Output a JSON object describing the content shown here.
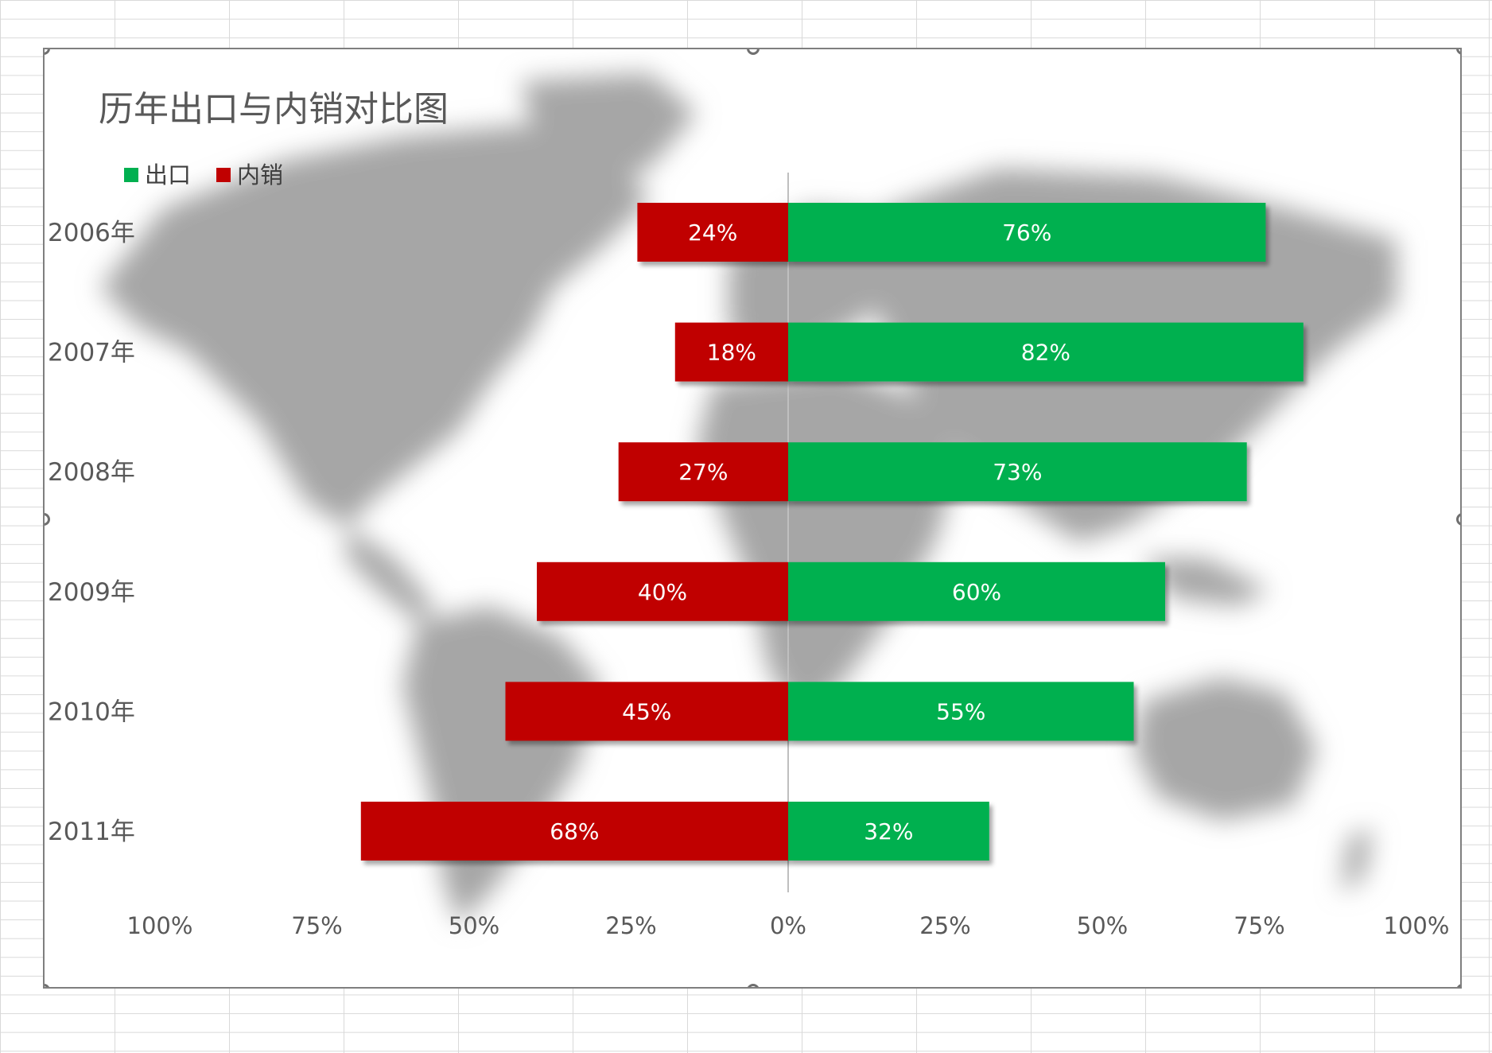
{
  "chart_data": {
    "type": "bar",
    "title": "历年出口与内销对比图",
    "categories": [
      "2006年",
      "2007年",
      "2008年",
      "2009年",
      "2010年",
      "2011年"
    ],
    "series": [
      {
        "name": "出口",
        "color": "#00b050",
        "values": [
          0.76,
          0.82,
          0.73,
          0.6,
          0.55,
          0.32
        ]
      },
      {
        "name": "内销",
        "color": "#c00000",
        "values": [
          0.24,
          0.18,
          0.27,
          0.4,
          0.45,
          0.68
        ]
      }
    ],
    "data_labels": {
      "出口": [
        "76%",
        "82%",
        "73%",
        "60%",
        "55%",
        "32%"
      ],
      "内销": [
        "24%",
        "18%",
        "27%",
        "40%",
        "45%",
        "68%"
      ]
    },
    "x_tick_labels": [
      "100%",
      "75%",
      "50%",
      "25%",
      "0%",
      "25%",
      "50%",
      "75%",
      "100%"
    ],
    "xlim": [
      -1,
      1
    ],
    "xlabel": "",
    "ylabel": "",
    "legend_position": "top-left",
    "grid": false,
    "background": "blurred world map"
  }
}
